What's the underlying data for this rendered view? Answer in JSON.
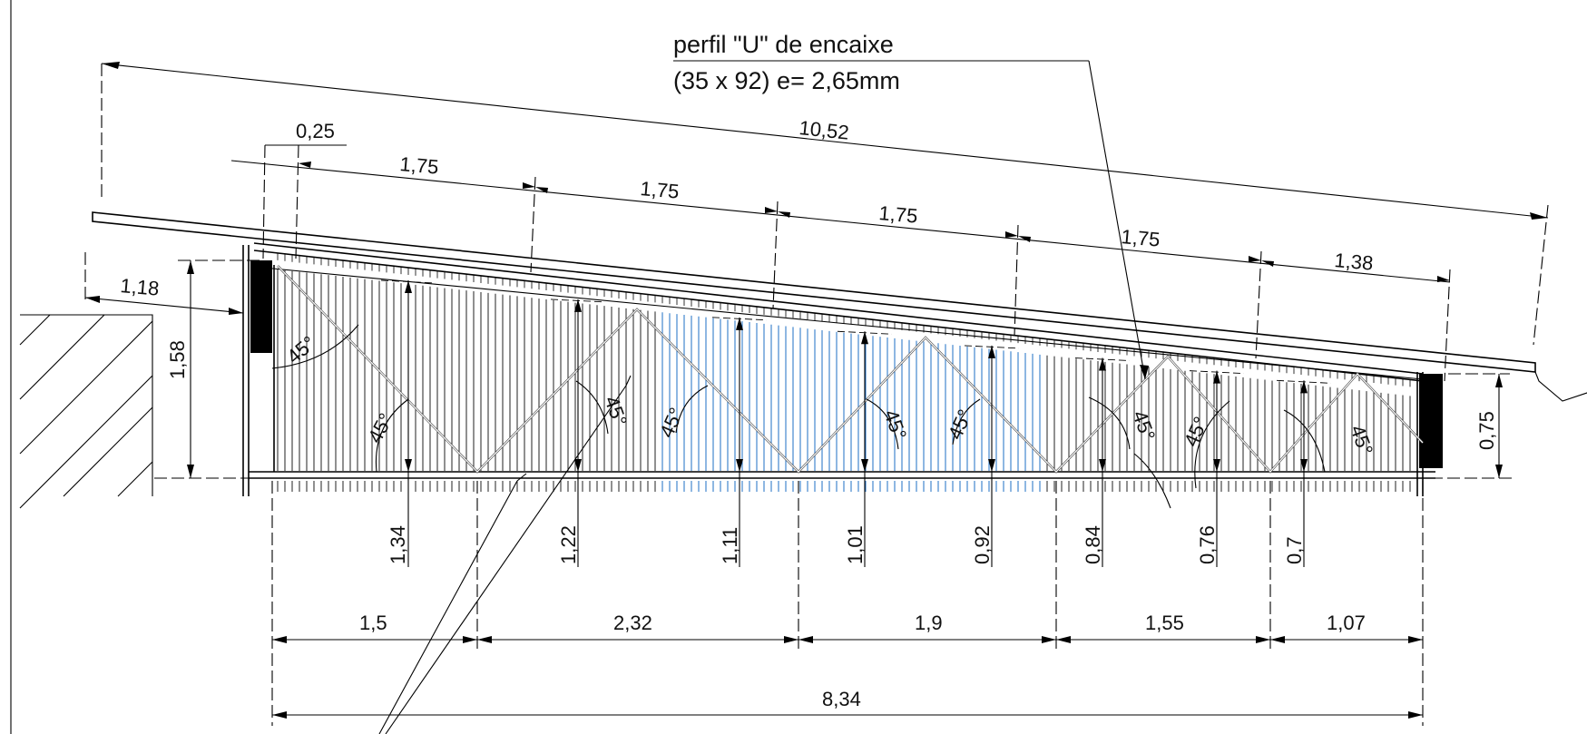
{
  "note": {
    "line1": "perfil \"U\" de encaixe",
    "line2": "(35 x 92) e= 2,65mm"
  },
  "roof_dims": {
    "overall": "10,52",
    "offset": "0,25",
    "spacings": [
      "1,75",
      "1,75",
      "1,75",
      "1,75",
      "1,38"
    ],
    "overhang": "1,18"
  },
  "heights": {
    "left": "1,58",
    "right": "0,75",
    "posts": [
      "1,34",
      "1,22",
      "1,11",
      "1,01",
      "0,92",
      "0,84",
      "0,76",
      "0,7"
    ]
  },
  "angle_label": "45°",
  "bottom_dims": {
    "segments": [
      "1,5",
      "2,32",
      "1,9",
      "1,55",
      "1,07"
    ],
    "total": "8,34"
  },
  "colors": {
    "line": "#000000",
    "highlight_stripes": "#1e6fc4",
    "stripes": "#222222"
  }
}
